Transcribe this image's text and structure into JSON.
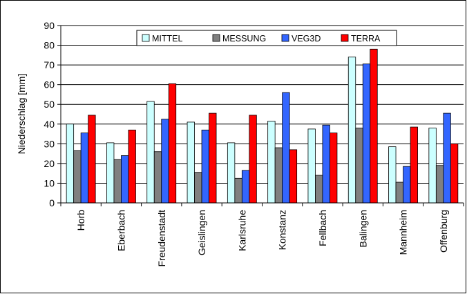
{
  "chart_data": {
    "type": "bar",
    "ylabel": "Niederschlag [mm]",
    "ylim": [
      0,
      90
    ],
    "yticks": [
      0,
      10,
      20,
      30,
      40,
      50,
      60,
      70,
      80,
      90
    ],
    "grid": true,
    "legend_position": "top-center",
    "categories": [
      "Horb",
      "Eberbach",
      "Freudenstadt",
      "Geislingen",
      "Karlsruhe",
      "Konstanz",
      "Fellbach",
      "Balingen",
      "Mannheim",
      "Offenburg"
    ],
    "series": [
      {
        "name": "MITTEL",
        "color": "#ccffff",
        "values": [
          40,
          30.5,
          51.5,
          41,
          30.5,
          41.5,
          37.5,
          74,
          28.5,
          38
        ]
      },
      {
        "name": "MESSUNG",
        "color": "#808080",
        "values": [
          26.5,
          22,
          26,
          15.5,
          12.5,
          28,
          14,
          38,
          10.5,
          19
        ]
      },
      {
        "name": "VEG3D",
        "color": "#3366ff",
        "values": [
          35.5,
          24,
          42.5,
          37,
          16.5,
          56,
          39.5,
          70.5,
          18.5,
          45.5
        ]
      },
      {
        "name": "TERRA",
        "color": "#ff0000",
        "values": [
          44.5,
          37,
          60.5,
          45.5,
          44.5,
          27,
          35.5,
          78,
          38.5,
          30
        ]
      }
    ]
  }
}
